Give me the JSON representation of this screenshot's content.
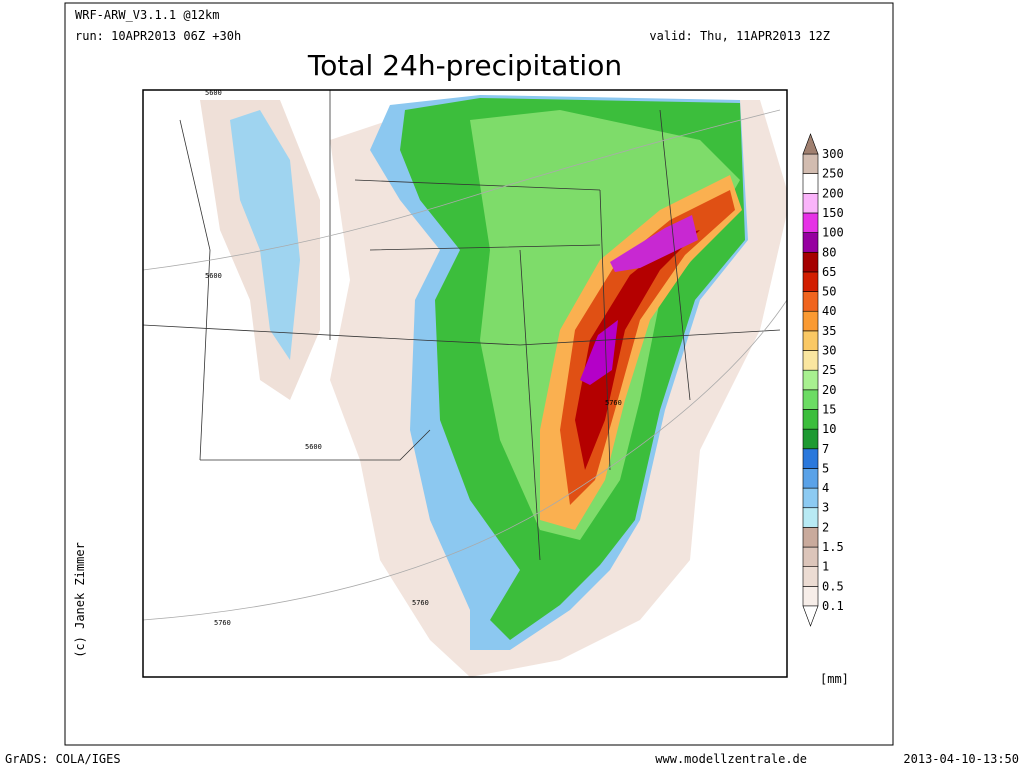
{
  "header": {
    "model": "WRF-ARW_V3.1.1 @12km",
    "run": "run: 10APR2013 06Z +30h",
    "valid": "valid: Thu, 11APR2013 12Z",
    "title": "Total 24h-precipitation"
  },
  "legend": {
    "levels": [
      0.1,
      0.5,
      1,
      1.5,
      2,
      3,
      4,
      5,
      7,
      10,
      15,
      20,
      25,
      30,
      35,
      40,
      50,
      65,
      80,
      100,
      150,
      200,
      250,
      300
    ],
    "colors": [
      "#ffffff",
      "#f7eee9",
      "#ecdcd3",
      "#dcc5ba",
      "#c9aa9c",
      "#b8eaf4",
      "#8ccaf2",
      "#5aa2e8",
      "#2a78dc",
      "#1e9a32",
      "#3cbe3c",
      "#6cdc64",
      "#a8f090",
      "#fae6a0",
      "#fac864",
      "#fa9a32",
      "#f0641e",
      "#d21e00",
      "#a50000",
      "#9600a0",
      "#e632e6",
      "#fab4fa",
      "#ffffff",
      "#d2bcb0",
      "#a08070"
    ],
    "unit": "[mm]"
  },
  "contour_labels": [
    "5600",
    "5600",
    "5600",
    "5760",
    "5760",
    "5760"
  ],
  "credits": {
    "author": "(c) Janek Zimmer",
    "software": "GrADS: COLA/IGES",
    "site": "www.modellzentrale.de",
    "timestamp": "2013-04-10-13:50"
  }
}
